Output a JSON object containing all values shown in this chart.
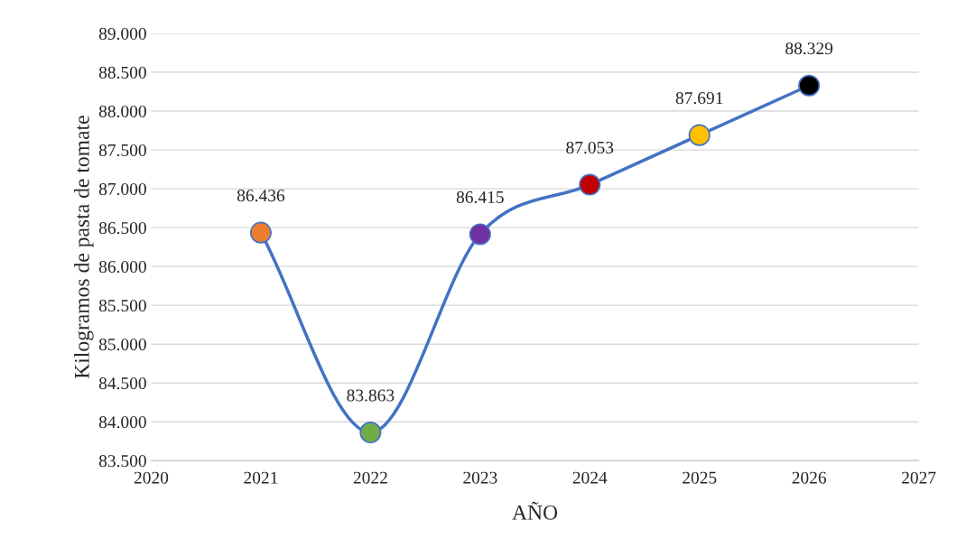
{
  "chart_data": {
    "type": "line",
    "xlabel": "AÑO",
    "ylabel": "Kilogramos de pasta de tomate",
    "x": [
      2021,
      2022,
      2023,
      2024,
      2025,
      2026
    ],
    "series": [
      {
        "color": "#4472c4",
        "colors": [
          "#ed7d31",
          "#70ad47",
          "#7030a0",
          "#c00000",
          "#ffc000",
          "#000000"
        ],
        "values": [
          86436,
          83863,
          86415,
          87053,
          87691,
          88329
        ],
        "value_labels": [
          "86.436",
          "83.863",
          "86.415",
          "87.053",
          "87.691",
          "88.329"
        ]
      }
    ],
    "xlim": [
      2020,
      2027
    ],
    "xticks": [
      2020,
      2021,
      2022,
      2023,
      2024,
      2025,
      2026,
      2027
    ],
    "ylim": [
      83500,
      89000
    ],
    "yticks": [
      {
        "value": 83500,
        "label": "83.500"
      },
      {
        "value": 84000,
        "label": "84.000"
      },
      {
        "value": 84500,
        "label": "84.500"
      },
      {
        "value": 85000,
        "label": "85.000"
      },
      {
        "value": 85500,
        "label": "85.500"
      },
      {
        "value": 86000,
        "label": "86.000"
      },
      {
        "value": 86500,
        "label": "86.500"
      },
      {
        "value": 87000,
        "label": "87.000"
      },
      {
        "value": 87500,
        "label": "87.500"
      },
      {
        "value": 88000,
        "label": "88.000"
      },
      {
        "value": 88500,
        "label": "88.500"
      },
      {
        "value": 89000,
        "label": "89.000"
      }
    ],
    "grid": "y",
    "marker": "circle",
    "line_style": "solid"
  }
}
